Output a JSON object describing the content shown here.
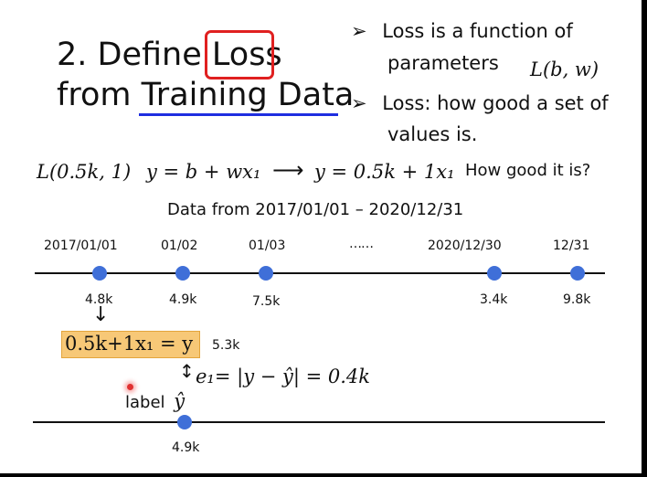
{
  "title": {
    "line1_prefix": "2. Define ",
    "line1_boxed": "Loss",
    "line2": "from Training Data"
  },
  "bullets": [
    {
      "marker": "➢",
      "text": "Loss is a function of"
    },
    {
      "text": "parameters",
      "math": "L(b, w)"
    },
    {
      "marker": "➢",
      "text": "Loss: how good a set of"
    },
    {
      "text": "values is."
    }
  ],
  "equation_row": {
    "params": "L(0.5k, 1)",
    "model": "y = b + wx₁",
    "arrow": "⟶",
    "instance": "y = 0.5k + 1x₁",
    "question": "How good it is?"
  },
  "data_range": "Data from 2017/01/01 – 2020/12/31",
  "timeline": {
    "dates": [
      "2017/01/01",
      "01/02",
      "01/03",
      "……",
      "2020/12/30",
      "12/31"
    ],
    "values": [
      "4.8k",
      "4.9k",
      "7.5k",
      "3.4k",
      "9.8k"
    ]
  },
  "prediction": {
    "down_arrow": "↓",
    "formula": "0.5k+1x₁ = y",
    "result": "5.3k",
    "updown_arrow": "↕",
    "error": "e₁= |y − ŷ| = 0.4k",
    "label_word": "label",
    "label_symbol": "ŷ",
    "label_value": "4.9k"
  },
  "colors": {
    "loss_box": "#e02020",
    "underline": "#1e2ee0",
    "dot": "#3f6fd8",
    "highlight": "#f7c877"
  }
}
